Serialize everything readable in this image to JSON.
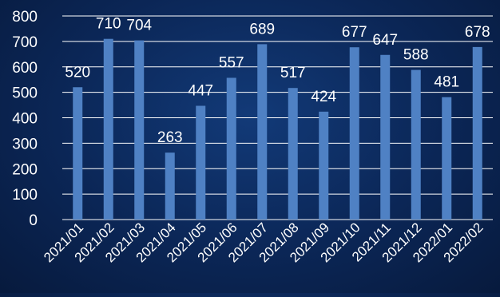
{
  "chart_data": {
    "type": "bar",
    "categories": [
      "2021/01",
      "2021/02",
      "2021/03",
      "2021/04",
      "2021/05",
      "2021/06",
      "2021/07",
      "2021/08",
      "2021/09",
      "2021/10",
      "2021/11",
      "2021/12",
      "2022/01",
      "2022/02"
    ],
    "values": [
      520,
      710,
      704,
      263,
      447,
      557,
      689,
      517,
      424,
      677,
      647,
      588,
      481,
      678
    ],
    "y_ticks": [
      "0",
      "100",
      "200",
      "300",
      "400",
      "500",
      "600",
      "700",
      "800"
    ],
    "ylim": [
      0,
      800
    ],
    "grid": true,
    "bar_color": "#4f81c4",
    "grid_color": "#ffffff",
    "text_color": "#ffffff"
  }
}
